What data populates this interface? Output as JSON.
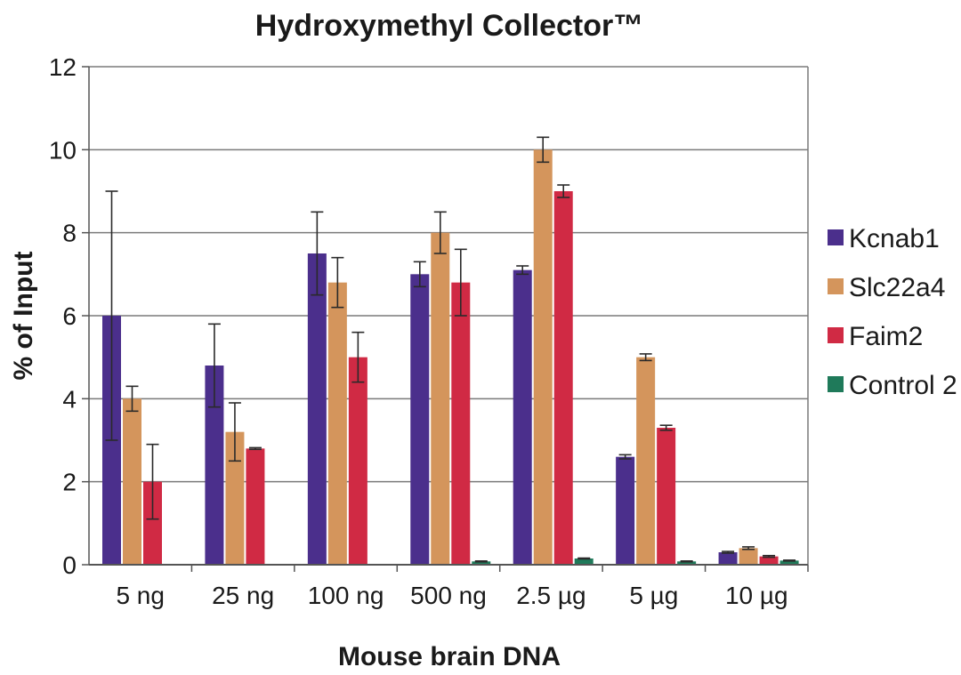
{
  "chart_data": {
    "type": "bar",
    "title": "Hydroxymethyl Collector™",
    "xlabel": "Mouse brain DNA",
    "ylabel": "% of Input",
    "ylim": [
      0,
      12
    ],
    "yticks": [
      "0",
      "2",
      "4",
      "6",
      "8",
      "10",
      "12"
    ],
    "grid": "horizontal",
    "legend_position": "right",
    "categories": [
      "5 ng",
      "25 ng",
      "100 ng",
      "500 ng",
      "2.5 µg",
      "5 µg",
      "10 µg"
    ],
    "series": [
      {
        "name": "Kcnab1",
        "color": "#4b2f8c",
        "values": [
          6.0,
          4.8,
          7.5,
          7.0,
          7.1,
          2.6,
          0.3
        ],
        "errors": [
          3.0,
          1.0,
          1.0,
          0.3,
          0.1,
          0.05,
          0.02
        ]
      },
      {
        "name": "Slc22a4",
        "color": "#d4955c",
        "values": [
          4.0,
          3.2,
          6.8,
          8.0,
          10.0,
          5.0,
          0.4
        ],
        "errors": [
          0.3,
          0.7,
          0.6,
          0.5,
          0.3,
          0.08,
          0.03
        ]
      },
      {
        "name": "Faim2",
        "color": "#d02a44",
        "values": [
          2.0,
          2.8,
          5.0,
          6.8,
          9.0,
          3.3,
          0.2
        ],
        "errors": [
          0.9,
          0.02,
          0.6,
          0.8,
          0.15,
          0.06,
          0.02
        ]
      },
      {
        "name": "Control 2",
        "color": "#1f7a5a",
        "values": [
          0.0,
          0.0,
          0.0,
          0.08,
          0.15,
          0.08,
          0.1
        ],
        "errors": [
          0,
          0,
          0,
          0.01,
          0.01,
          0.01,
          0.01
        ]
      }
    ]
  }
}
